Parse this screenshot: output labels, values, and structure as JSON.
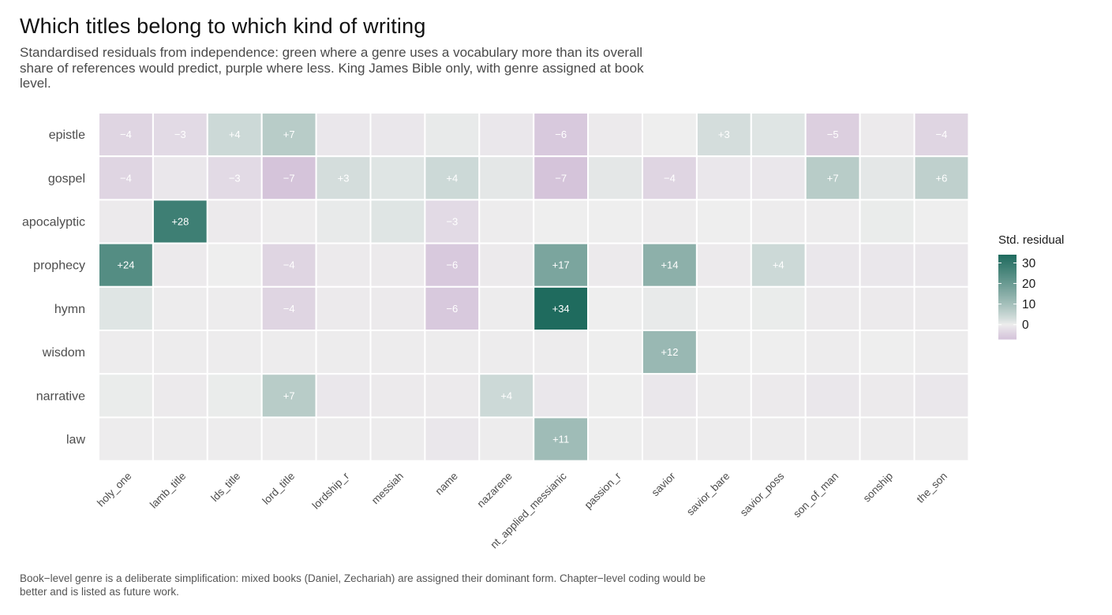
{
  "title": "Which titles belong to which kind of writing",
  "subtitle": "Standardised residuals from independence: green where a genre uses a vocabulary more than its overall share of references would predict, purple where less. King James Bible only, with genre assigned at book level.",
  "caption": "Book−level genre is a deliberate simplification: mixed books (Daniel, Zechariah) are assigned their dominant form. Chapter−level coding would be better and is listed as future work.",
  "colors": {
    "high": "#1f6b5e",
    "mid": "#eeeeee",
    "low": "#d5c4da",
    "label_light": "#ffffff"
  },
  "chart_data": {
    "type": "heatmap",
    "x_categories": [
      "holy_one",
      "lamb_title",
      "lds_title",
      "lord_title",
      "lordship_r",
      "messiah",
      "name",
      "nazarene",
      "nt_applied_messianic",
      "passion_r",
      "savior",
      "savior_bare",
      "savior_poss",
      "son_of_man",
      "sonship",
      "the_son"
    ],
    "y_categories": [
      "epistle",
      "gospel",
      "apocalyptic",
      "prophecy",
      "hymn",
      "wisdom",
      "narrative",
      "law"
    ],
    "values": [
      [
        -4,
        -3,
        4,
        7,
        -1,
        -1,
        0.5,
        -1,
        -6,
        -0.5,
        0,
        3,
        1.5,
        -5,
        -0.5,
        -4
      ],
      [
        -4,
        -1,
        -3,
        -7,
        3,
        1.5,
        4,
        1,
        -7,
        1,
        -4,
        -1,
        -1,
        7,
        1,
        6
      ],
      [
        -0.5,
        28,
        -0.5,
        -0.3,
        0.5,
        1.5,
        -3,
        -0.3,
        0,
        0,
        -0.3,
        0,
        -0.3,
        -0.3,
        0.3,
        0
      ],
      [
        24,
        -0.5,
        0,
        -4,
        -0.5,
        -0.5,
        -6,
        -0.5,
        17,
        -0.5,
        14,
        -0.5,
        4,
        -1,
        -1,
        -1
      ],
      [
        1.5,
        -0.3,
        -0.3,
        -4,
        -0.5,
        -0.5,
        -6,
        -0.3,
        34,
        0,
        0.5,
        0,
        0.3,
        -0.5,
        -0.5,
        -0.5
      ],
      [
        -0.3,
        -0.3,
        -0.3,
        -0.3,
        -0.3,
        -0.3,
        -0.3,
        -0.3,
        -0.3,
        0,
        12,
        0,
        0,
        -0.3,
        0,
        -0.3
      ],
      [
        0.3,
        -0.5,
        0.3,
        7,
        -1,
        -0.5,
        -0.5,
        4,
        -1,
        0,
        -1,
        -0.3,
        -0.5,
        -1,
        -0.5,
        -1
      ],
      [
        -0.3,
        -0.3,
        -0.3,
        -0.3,
        -0.3,
        -0.3,
        -1,
        -0.3,
        11,
        0,
        -0.3,
        -0.3,
        -0.3,
        -0.3,
        -0.3,
        -0.3
      ]
    ],
    "cell_labels": [
      [
        "−4",
        "−3",
        "+4",
        "+7",
        "",
        "",
        "",
        "",
        "−6",
        "",
        "",
        "+3",
        "",
        "−5",
        "",
        "−4"
      ],
      [
        "−4",
        "",
        "−3",
        "−7",
        "+3",
        "",
        "+4",
        "",
        "−7",
        "",
        "−4",
        "",
        "",
        "+7",
        "",
        "+6"
      ],
      [
        "",
        "+28",
        "",
        "",
        "",
        "",
        "−3",
        "",
        "",
        "",
        "",
        "",
        "",
        "",
        "",
        ""
      ],
      [
        "+24",
        "",
        "",
        "−4",
        "",
        "",
        "−6",
        "",
        "+17",
        "",
        "+14",
        "",
        "+4",
        "",
        "",
        ""
      ],
      [
        "",
        "",
        "",
        "−4",
        "",
        "",
        "−6",
        "",
        "+34",
        "",
        "",
        "",
        "",
        "",
        "",
        ""
      ],
      [
        "",
        "",
        "",
        "",
        "",
        "",
        "",
        "",
        "",
        "",
        "+12",
        "",
        "",
        "",
        "",
        ""
      ],
      [
        "",
        "",
        "",
        "+7",
        "",
        "",
        "",
        "+4",
        "",
        "",
        "",
        "",
        "",
        "",
        "",
        ""
      ],
      [
        "",
        "",
        "",
        "",
        "",
        "",
        "",
        "",
        "+11",
        "",
        "",
        "",
        "",
        "",
        "",
        ""
      ]
    ],
    "legend": {
      "title": "Std. residual",
      "ticks": [
        30,
        20,
        10,
        0
      ],
      "range": [
        -7,
        34
      ],
      "placement": "right"
    }
  }
}
